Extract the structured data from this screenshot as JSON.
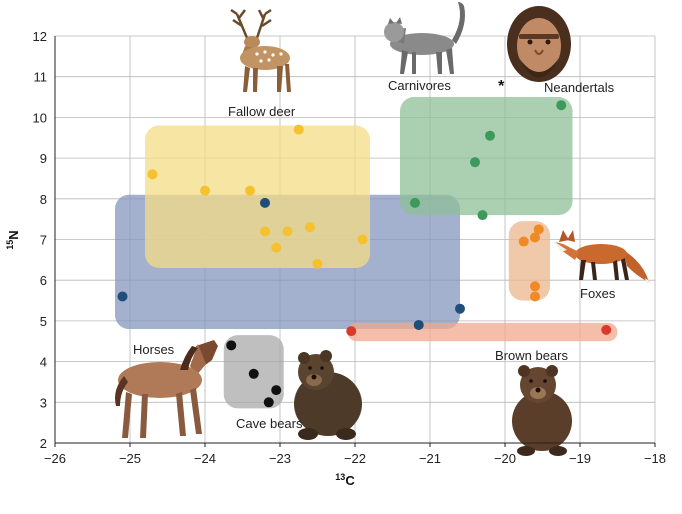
{
  "chart_data": {
    "type": "scatter",
    "xlabel_sup": "13",
    "xlabel_base": "C",
    "ylabel_sup": "15",
    "ylabel_base": "N",
    "xlim": [
      -26,
      -18
    ],
    "ylim": [
      2,
      12
    ],
    "x_ticks": [
      -26,
      -25,
      -24,
      -23,
      -22,
      -21,
      -20,
      -19,
      -18
    ],
    "x_tick_labels": [
      "−26",
      "−25",
      "−24",
      "−23",
      "−22",
      "−21",
      "−20",
      "−19",
      "−18"
    ],
    "y_ticks": [
      2,
      3,
      4,
      5,
      6,
      7,
      8,
      9,
      10,
      11,
      12
    ],
    "y_tick_labels": [
      "2",
      "3",
      "4",
      "5",
      "6",
      "7",
      "8",
      "9",
      "10",
      "11",
      "12"
    ],
    "grid": true,
    "neandertal_marker": "*",
    "groups": [
      {
        "name": "Horses",
        "color": "#1f4e79",
        "region_color": "#8496bd",
        "region": {
          "x": [
            -25.2,
            -20.6
          ],
          "y": [
            4.8,
            8.1
          ]
        },
        "points": [
          [
            -25.1,
            5.6
          ],
          [
            -23.2,
            7.9
          ],
          [
            -21.15,
            4.9
          ],
          [
            -20.6,
            5.3
          ]
        ]
      },
      {
        "name": "Fallow deer",
        "color": "#f6c12e",
        "region_color": "#f4dc86",
        "region": {
          "x": [
            -24.8,
            -21.8
          ],
          "y": [
            6.3,
            9.8
          ]
        },
        "points": [
          [
            -24.7,
            8.6
          ],
          [
            -24.0,
            8.2
          ],
          [
            -23.4,
            8.2
          ],
          [
            -22.75,
            9.7
          ],
          [
            -23.2,
            7.2
          ],
          [
            -22.9,
            7.2
          ],
          [
            -23.05,
            6.8
          ],
          [
            -22.6,
            7.3
          ],
          [
            -22.5,
            6.4
          ],
          [
            -21.9,
            7.0
          ]
        ]
      },
      {
        "name": "Carnivores",
        "color": "#3c9a5a",
        "region_color": "#8fbf97",
        "region": {
          "x": [
            -21.4,
            -19.1
          ],
          "y": [
            7.6,
            10.5
          ]
        },
        "points": [
          [
            -21.2,
            7.9
          ],
          [
            -20.2,
            9.55
          ],
          [
            -20.4,
            8.9
          ],
          [
            -20.3,
            7.6
          ],
          [
            -19.25,
            10.3
          ]
        ]
      },
      {
        "name": "Foxes",
        "color": "#f08a24",
        "region_color": "#eab78c",
        "region": {
          "x": [
            -19.95,
            -19.4
          ],
          "y": [
            5.5,
            7.45
          ]
        },
        "points": [
          [
            -19.75,
            6.95
          ],
          [
            -19.6,
            7.05
          ],
          [
            -19.55,
            7.25
          ],
          [
            -19.6,
            5.85
          ],
          [
            -19.6,
            5.6
          ]
        ]
      },
      {
        "name": "Brown bears",
        "color": "#d93a2a",
        "region_color": "#f1a88d",
        "region": {
          "x": [
            -22.1,
            -18.5
          ],
          "y": [
            4.5,
            4.95
          ]
        },
        "points": [
          [
            -22.05,
            4.75
          ],
          [
            -18.65,
            4.78
          ]
        ]
      },
      {
        "name": "Cave bears",
        "color": "#111111",
        "region_color": "#a9a9a9",
        "region": {
          "x": [
            -23.75,
            -22.95
          ],
          "y": [
            2.85,
            4.65
          ]
        },
        "points": [
          [
            -23.65,
            4.4
          ],
          [
            -23.35,
            3.7
          ],
          [
            -23.05,
            3.3
          ],
          [
            -23.15,
            3.0
          ]
        ]
      }
    ],
    "neandertals": {
      "name": "Neandertals",
      "x": -20.05,
      "y": 10.85
    }
  }
}
